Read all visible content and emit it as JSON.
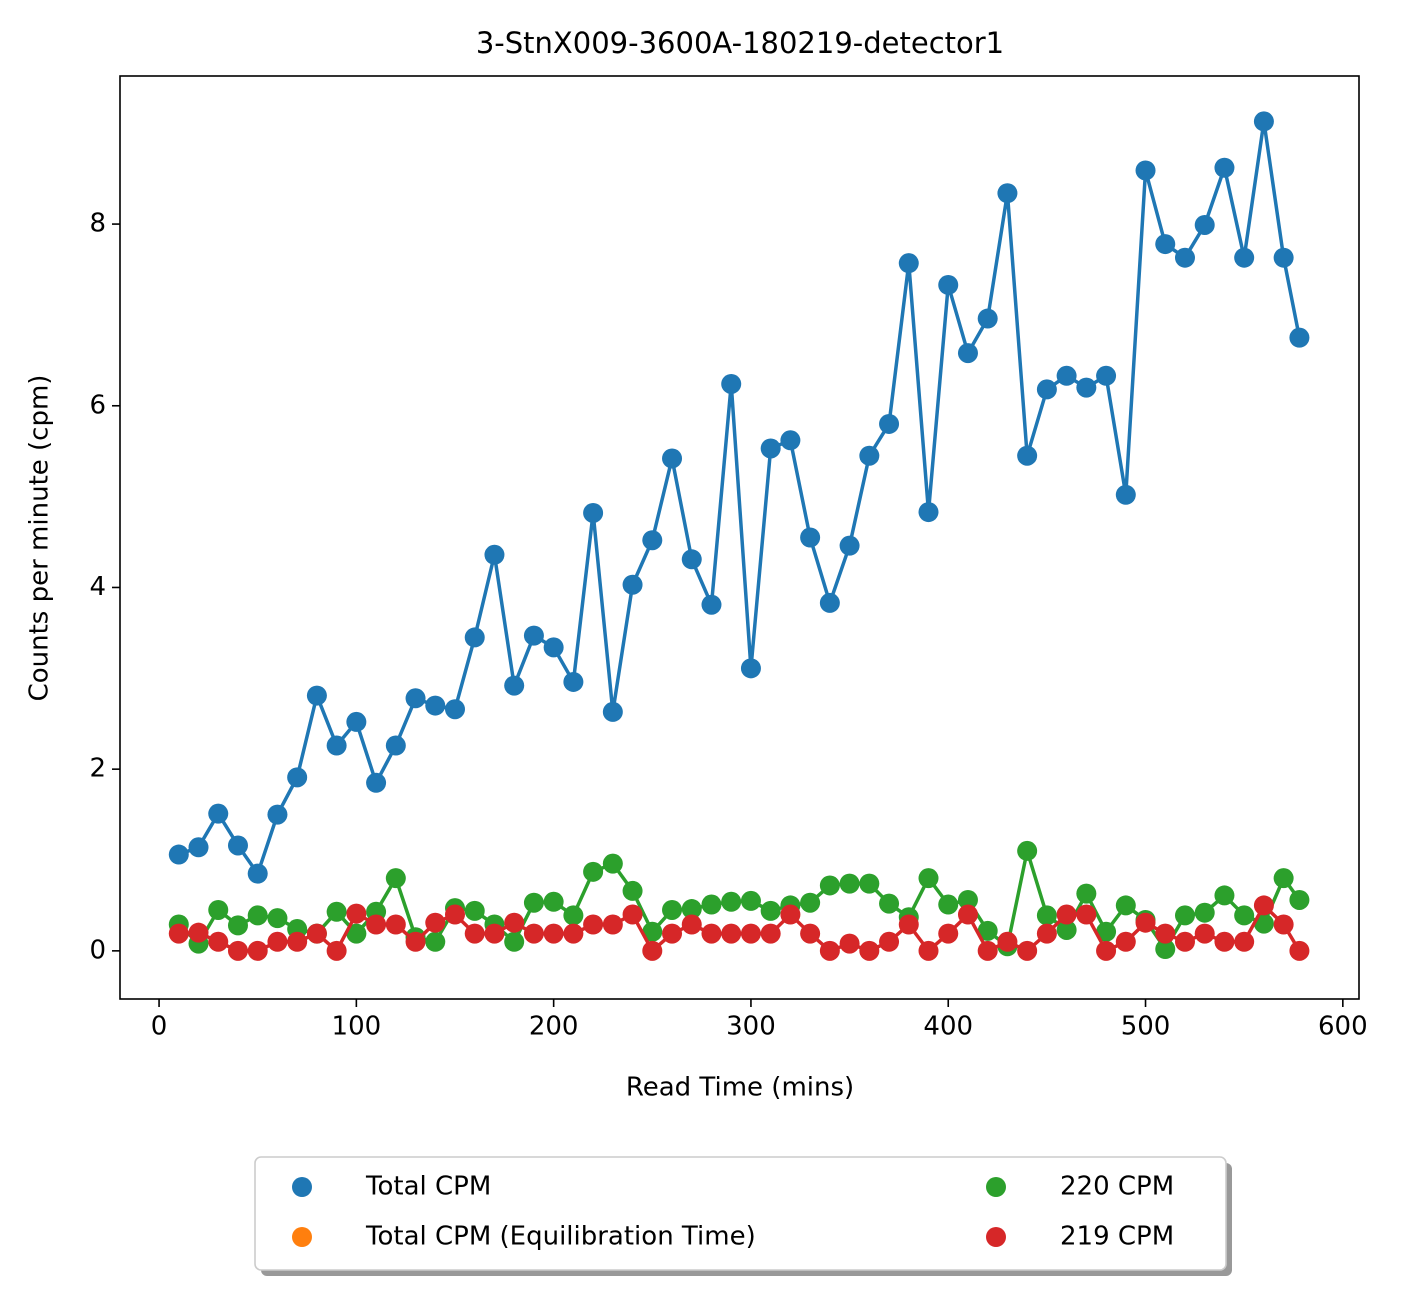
{
  "chart_data": {
    "type": "line",
    "title": "3-StnX009-3600A-180219-detector1",
    "xlabel": "Read Time (mins)",
    "ylabel": "Counts per minute (cpm)",
    "x": [
      10,
      20,
      30,
      40,
      50,
      60,
      70,
      80,
      90,
      100,
      110,
      120,
      130,
      140,
      150,
      160,
      170,
      180,
      190,
      200,
      210,
      220,
      230,
      240,
      250,
      260,
      270,
      280,
      290,
      300,
      310,
      320,
      330,
      340,
      350,
      360,
      370,
      380,
      390,
      400,
      410,
      420,
      430,
      440,
      450,
      460,
      470,
      480,
      490,
      500,
      510,
      520,
      530,
      540,
      550,
      560,
      570,
      578
    ],
    "series": [
      {
        "name": "Total CPM",
        "color": "#1f77b4",
        "values": [
          1.06,
          1.14,
          1.51,
          1.16,
          0.85,
          1.5,
          1.91,
          2.81,
          2.26,
          2.52,
          1.85,
          2.26,
          2.78,
          2.7,
          2.66,
          3.45,
          4.36,
          2.92,
          3.47,
          3.34,
          2.96,
          4.82,
          2.63,
          4.03,
          4.52,
          5.42,
          4.31,
          3.81,
          6.24,
          3.11,
          5.53,
          5.62,
          4.55,
          3.83,
          4.46,
          5.45,
          5.8,
          7.57,
          4.83,
          7.33,
          6.58,
          6.96,
          8.34,
          5.45,
          6.18,
          6.33,
          6.2,
          6.33,
          5.02,
          8.59,
          7.78,
          7.63,
          7.99,
          8.62,
          7.63,
          9.13,
          7.63,
          6.75
        ]
      },
      {
        "name": "Total CPM (Equilibration Time)",
        "color": "#ff7f0e",
        "values": [
          null,
          null,
          null,
          null,
          null,
          null,
          null,
          null,
          null,
          null,
          null,
          null,
          null,
          null,
          null,
          null,
          null,
          null,
          null,
          null,
          null,
          null,
          null,
          null,
          null,
          null,
          null,
          null,
          null,
          null,
          null,
          null,
          null,
          null,
          null,
          null,
          null,
          null,
          null,
          null,
          null,
          null,
          null,
          null,
          null,
          null,
          null,
          null,
          null,
          null,
          null,
          null,
          null,
          null,
          null,
          null,
          null,
          null
        ]
      },
      {
        "name": "220 CPM",
        "color": "#2ca02c",
        "values": [
          0.29,
          0.08,
          0.45,
          0.28,
          0.39,
          0.36,
          0.24,
          0.19,
          0.43,
          0.19,
          0.43,
          0.8,
          0.15,
          0.1,
          0.47,
          0.44,
          0.29,
          0.1,
          0.53,
          0.54,
          0.39,
          0.87,
          0.96,
          0.66,
          0.21,
          0.45,
          0.46,
          0.51,
          0.54,
          0.55,
          0.44,
          0.5,
          0.53,
          0.72,
          0.74,
          0.74,
          0.52,
          0.37,
          0.8,
          0.51,
          0.56,
          0.22,
          0.05,
          1.1,
          0.39,
          0.23,
          0.63,
          0.21,
          0.5,
          0.34,
          0.02,
          0.39,
          0.42,
          0.61,
          0.39,
          0.3,
          0.8,
          0.56
        ]
      },
      {
        "name": "219 CPM",
        "color": "#d62728",
        "values": [
          0.19,
          0.2,
          0.1,
          0.0,
          0.0,
          0.1,
          0.1,
          0.19,
          0.0,
          0.41,
          0.29,
          0.29,
          0.1,
          0.31,
          0.4,
          0.19,
          0.19,
          0.31,
          0.19,
          0.19,
          0.19,
          0.29,
          0.29,
          0.4,
          0.0,
          0.19,
          0.29,
          0.19,
          0.19,
          0.19,
          0.19,
          0.4,
          0.19,
          0.0,
          0.08,
          0.0,
          0.1,
          0.29,
          0.0,
          0.19,
          0.4,
          0.0,
          0.1,
          0.0,
          0.19,
          0.4,
          0.4,
          0.0,
          0.1,
          0.31,
          0.19,
          0.1,
          0.19,
          0.1,
          0.1,
          0.5,
          0.29,
          0.0
        ]
      }
    ],
    "xlim": [
      -19.8,
      608.2
    ],
    "ylim": [
      -0.53,
      9.63
    ],
    "xticks": [
      0,
      100,
      200,
      300,
      400,
      500,
      600
    ],
    "yticks": [
      0,
      2,
      4,
      6,
      8
    ],
    "legend": "bottom"
  }
}
